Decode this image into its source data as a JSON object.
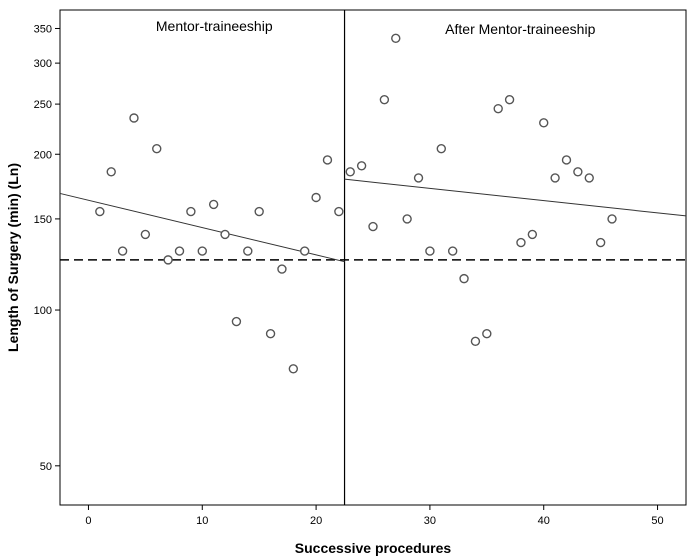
{
  "chart_data": {
    "type": "scatter",
    "title": "",
    "xlabel": "Successive procedures",
    "ylabel": "Length of Surgery (min) (Ln)",
    "x_scale": "linear",
    "y_scale": "log",
    "xlim": [
      -2.5,
      52.5
    ],
    "ylim": [
      42,
      380
    ],
    "x_ticks": [
      0,
      10,
      20,
      30,
      40,
      50
    ],
    "y_ticks": [
      50,
      100,
      150,
      200,
      250,
      300,
      350
    ],
    "grid": false,
    "phase_divider_x": 22.5,
    "panel_labels": [
      "Mentor-traineeship",
      "After Mentor-traineeship"
    ],
    "reference_line": {
      "style": "dashed",
      "y": 125
    },
    "series": [
      {
        "points": [
          {
            "x": 1,
            "y": 155
          },
          {
            "x": 2,
            "y": 185
          },
          {
            "x": 3,
            "y": 130
          },
          {
            "x": 4,
            "y": 235
          },
          {
            "x": 5,
            "y": 140
          },
          {
            "x": 6,
            "y": 205
          },
          {
            "x": 7,
            "y": 125
          },
          {
            "x": 8,
            "y": 130
          },
          {
            "x": 9,
            "y": 155
          },
          {
            "x": 10,
            "y": 130
          },
          {
            "x": 11,
            "y": 160
          },
          {
            "x": 12,
            "y": 140
          },
          {
            "x": 13,
            "y": 95
          },
          {
            "x": 14,
            "y": 130
          },
          {
            "x": 15,
            "y": 155
          },
          {
            "x": 16,
            "y": 90
          },
          {
            "x": 17,
            "y": 120
          },
          {
            "x": 18,
            "y": 77
          },
          {
            "x": 19,
            "y": 130
          },
          {
            "x": 20,
            "y": 165
          },
          {
            "x": 21,
            "y": 195
          },
          {
            "x": 22,
            "y": 155
          }
        ],
        "fit_line": {
          "x": [
            -2.5,
            22.5
          ],
          "y": [
            168,
            124
          ]
        }
      },
      {
        "points": [
          {
            "x": 23,
            "y": 185
          },
          {
            "x": 24,
            "y": 190
          },
          {
            "x": 25,
            "y": 145
          },
          {
            "x": 26,
            "y": 255
          },
          {
            "x": 27,
            "y": 335
          },
          {
            "x": 28,
            "y": 150
          },
          {
            "x": 29,
            "y": 180
          },
          {
            "x": 30,
            "y": 130
          },
          {
            "x": 31,
            "y": 205
          },
          {
            "x": 32,
            "y": 130
          },
          {
            "x": 33,
            "y": 115
          },
          {
            "x": 34,
            "y": 87
          },
          {
            "x": 35,
            "y": 90
          },
          {
            "x": 36,
            "y": 245
          },
          {
            "x": 37,
            "y": 255
          },
          {
            "x": 38,
            "y": 135
          },
          {
            "x": 39,
            "y": 140
          },
          {
            "x": 40,
            "y": 230
          },
          {
            "x": 41,
            "y": 180
          },
          {
            "x": 42,
            "y": 195
          },
          {
            "x": 43,
            "y": 185
          },
          {
            "x": 44,
            "y": 180
          },
          {
            "x": 45,
            "y": 135
          },
          {
            "x": 46,
            "y": 150
          }
        ],
        "fit_line": {
          "x": [
            22.5,
            52.5
          ],
          "y": [
            179,
            152
          ]
        }
      }
    ]
  }
}
